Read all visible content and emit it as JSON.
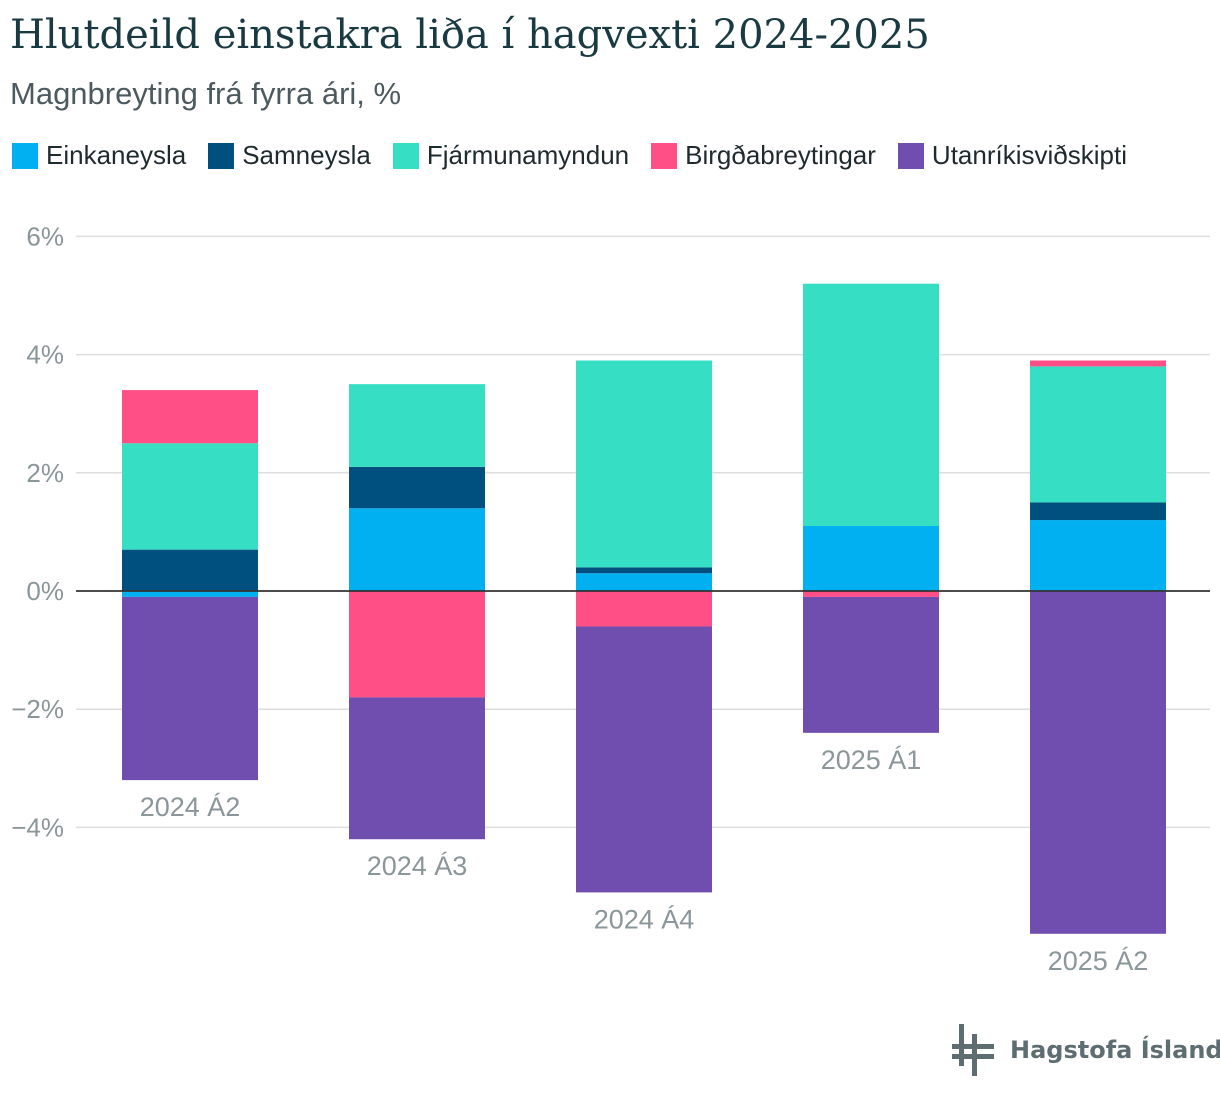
{
  "colors": {
    "Einkaneysla": "#00b0f0",
    "Samneysla": "#00507f",
    "Fjármunamyndun": "#36dfc4",
    "Birgðabreytingar": "#ff4f86",
    "Utanríkisviðskipti": "#704eb0",
    "grid": "#dedede",
    "zero_line": "#333333",
    "axis_text": "#8a9699"
  },
  "chart_data": {
    "type": "bar",
    "stacked": true,
    "title": "Hlutdeild einstakra liða í hagvexti 2024-2025",
    "subtitle": "Magnbreyting frá fyrra ári, %",
    "categories": [
      "2024 Á2",
      "2024 Á3",
      "2024 Á4",
      "2025 Á1",
      "2025 Á2"
    ],
    "series": [
      {
        "name": "Einkaneysla",
        "values": [
          -0.1,
          1.4,
          0.3,
          1.1,
          1.2
        ]
      },
      {
        "name": "Samneysla",
        "values": [
          0.7,
          0.7,
          0.1,
          0.0,
          0.3
        ]
      },
      {
        "name": "Fjármunamyndun",
        "values": [
          1.8,
          1.4,
          3.5,
          4.1,
          2.3
        ]
      },
      {
        "name": "Birgðabreytingar",
        "values": [
          0.9,
          -1.8,
          -0.6,
          -0.1,
          0.1
        ]
      },
      {
        "name": "Utanríkisviðskipti",
        "values": [
          -3.1,
          -2.4,
          -4.5,
          -2.3,
          -5.8
        ]
      }
    ],
    "ylim": [
      -6,
      6
    ],
    "yticks": [
      -4,
      -2,
      0,
      2,
      4,
      6
    ],
    "ytick_labels": [
      "−4%",
      "−2%",
      "0%",
      "2%",
      "4%",
      "6%"
    ],
    "grid": true,
    "legend_position": "top-left",
    "category_labels_position": "below-bars"
  },
  "branding": {
    "logo_text": "Hagstofa Íslands",
    "logo_icon": "hagstofa-logo-icon"
  }
}
